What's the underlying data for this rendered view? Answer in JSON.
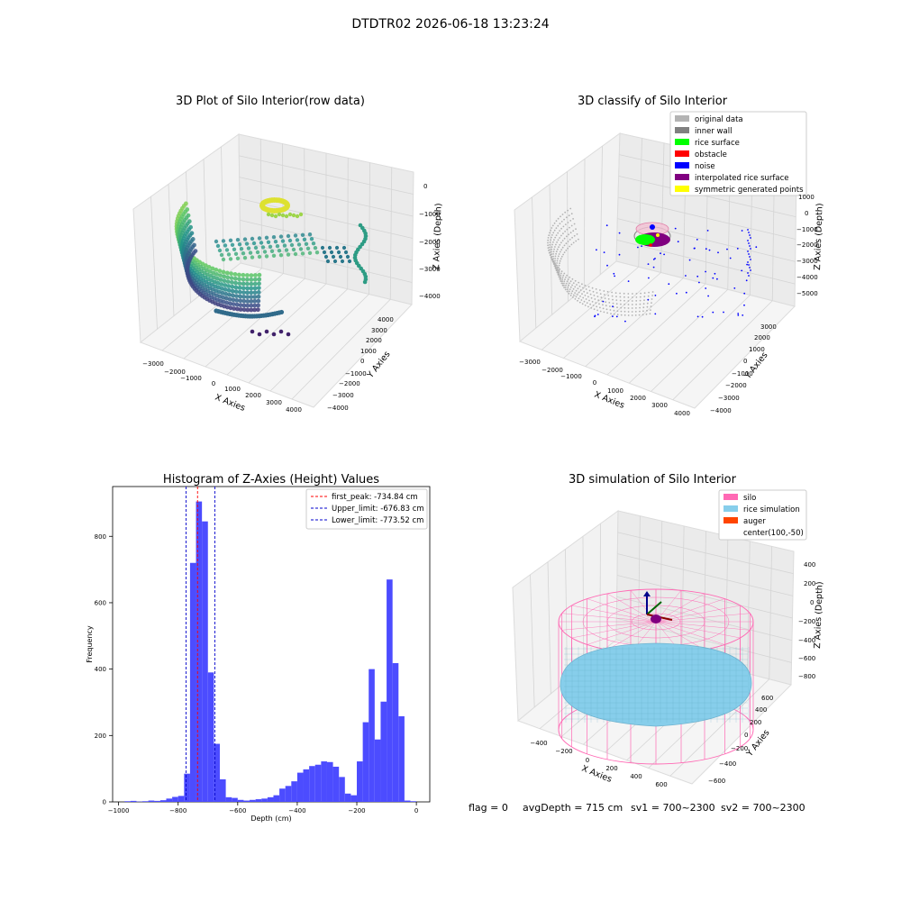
{
  "figure": {
    "suptitle": "DTDTR02 2026-06-18 13:23:24"
  },
  "status": {
    "flag": "flag = 0",
    "avg_depth": "avgDepth = 715 cm",
    "sv1": "sv1 = 700~2300",
    "sv2": "sv2 = 700~2300"
  },
  "colors": {
    "histogram_bars": "#4c4cff",
    "first_peak_line": "#ff0000",
    "limit_lines": "#0000cc",
    "original_data": "#b3b3b3",
    "inner_wall": "#808080",
    "rice_surface": "#00ff00",
    "obstacle": "#ff0000",
    "noise": "#0000ff",
    "interpolated_rice_surface": "#800080",
    "symmetric_generated_points": "#ffff00",
    "silo": "#ff69b4",
    "rice_simulation": "#87ceeb",
    "auger": "#ff4500"
  },
  "chart_data": [
    {
      "type": "scatter3d",
      "title": "3D Plot of Silo Interior(row data)",
      "xlabel": "X Axies",
      "ylabel": "Y Axies",
      "zlabel": "Z Axies (Depth)",
      "x_ticks": [
        "−3000",
        "−2000",
        "−1000",
        "0",
        "1000",
        "2000",
        "3000",
        "4000"
      ],
      "y_ticks": [
        "−4000",
        "−3000",
        "−2000",
        "−1000",
        "0",
        "1000",
        "2000",
        "3000",
        "4000"
      ],
      "z_ticks": [
        "0",
        "−1000",
        "−2000",
        "−3000",
        "−4000"
      ],
      "xlim": [
        -3500,
        4000
      ],
      "ylim": [
        -4000,
        4000
      ],
      "zlim": [
        -4500,
        0
      ],
      "colormap": "viridis"
    },
    {
      "type": "scatter3d",
      "title": "3D classify of Silo Interior",
      "xlabel": "X Axies",
      "ylabel": "Y Axies",
      "zlabel": "Z Axies (Depth)",
      "x_ticks": [
        "−3000",
        "−2000",
        "−1000",
        "0",
        "1000",
        "2000",
        "3000",
        "4000"
      ],
      "y_ticks": [
        "−4000",
        "−3000",
        "−2000",
        "−1000",
        "0",
        "1000",
        "2000",
        "3000"
      ],
      "z_ticks": [
        "1000",
        "0",
        "−1000",
        "−2000",
        "−3000",
        "−4000",
        "−5000"
      ],
      "xlim": [
        -3500,
        4000
      ],
      "ylim": [
        -4000,
        3500
      ],
      "zlim": [
        -5500,
        1000
      ],
      "legend": [
        "original data",
        "inner wall",
        "rice surface",
        "obstacle",
        "noise",
        "interpolated rice surface",
        "symmetric generated points"
      ],
      "legend_position": "top-right"
    },
    {
      "type": "bar",
      "title": "Histogram of Z-Axies (Height) Values",
      "xlabel": "Depth (cm)",
      "ylabel": "Frequency",
      "xlim": [
        -1020,
        45
      ],
      "ylim": [
        0,
        950
      ],
      "x_ticks": [
        "−1000",
        "−800",
        "−600",
        "−400",
        "−200",
        "0"
      ],
      "y_ticks": [
        "0",
        "200",
        "400",
        "600",
        "800"
      ],
      "bin_width": 20,
      "bins_left": [
        -980,
        -960,
        -940,
        -920,
        -900,
        -880,
        -860,
        -840,
        -820,
        -800,
        -780,
        -760,
        -740,
        -720,
        -700,
        -680,
        -660,
        -640,
        -620,
        -600,
        -580,
        -560,
        -540,
        -520,
        -500,
        -480,
        -460,
        -440,
        -420,
        -400,
        -380,
        -360,
        -340,
        -320,
        -300,
        -280,
        -260,
        -240,
        -220,
        -200,
        -180,
        -160,
        -140,
        -120,
        -100,
        -80,
        -60,
        -40,
        -20
      ],
      "values": [
        2,
        3,
        1,
        2,
        4,
        3,
        5,
        10,
        15,
        18,
        85,
        720,
        905,
        845,
        390,
        175,
        68,
        14,
        12,
        6,
        4,
        6,
        8,
        10,
        14,
        20,
        40,
        48,
        62,
        88,
        98,
        108,
        112,
        122,
        120,
        106,
        75,
        25,
        20,
        122,
        240,
        400,
        188,
        302,
        670,
        418,
        258,
        4,
        2
      ],
      "vlines": [
        {
          "label": "first_peak: -734.84 cm",
          "x": -734.84,
          "style": "red"
        },
        {
          "label": "Upper_limit: -676.83 cm",
          "x": -676.83,
          "style": "blue"
        },
        {
          "label": "Lower_limit: -773.52 cm",
          "x": -773.52,
          "style": "blue"
        }
      ],
      "legend_position": "top-right"
    },
    {
      "type": "surface3d",
      "title": "3D simulation of Silo Interior",
      "xlabel": "X Axies",
      "ylabel": "Y Axies",
      "zlabel": "Z Axies (Depth)",
      "x_ticks": [
        "−400",
        "−200",
        "0",
        "200",
        "400",
        "600"
      ],
      "y_ticks": [
        "−600",
        "−400",
        "−200",
        "0",
        "200",
        "400",
        "600"
      ],
      "z_ticks": [
        "400",
        "200",
        "0",
        "−200",
        "−400",
        "−600",
        "−800"
      ],
      "xlim": [
        -550,
        700
      ],
      "ylim": [
        -700,
        700
      ],
      "zlim": [
        -950,
        500
      ],
      "legend": [
        "silo",
        "rice simulation",
        "auger",
        "center(100,-50)"
      ],
      "legend_position": "top-right"
    }
  ]
}
